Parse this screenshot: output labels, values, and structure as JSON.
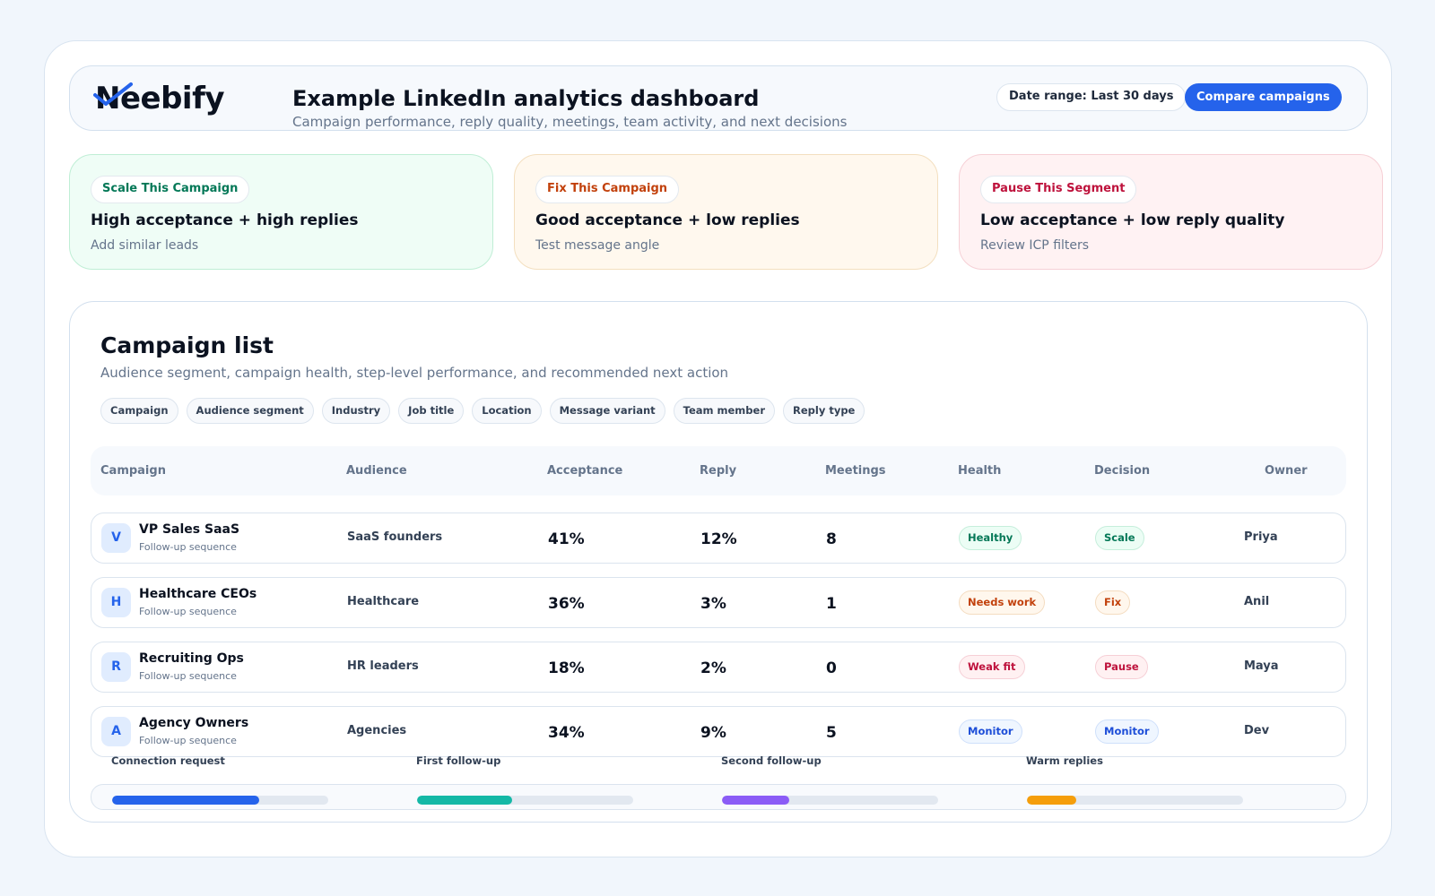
{
  "header": {
    "logo": "Neebify",
    "title": "Example LinkedIn analytics dashboard",
    "subtitle": "Campaign performance, reply quality, meetings, team activity, and next decisions",
    "date_range": "Date range: Last 30 days",
    "compare_label": "Compare campaigns"
  },
  "decisions": [
    {
      "pill": "Scale This Campaign",
      "title": "High acceptance + high replies",
      "desc": "Add similar leads"
    },
    {
      "pill": "Fix This Campaign",
      "title": "Good acceptance + low replies",
      "desc": "Test message angle"
    },
    {
      "pill": "Pause This Segment",
      "title": "Low acceptance + low reply quality",
      "desc": "Review ICP filters"
    }
  ],
  "campaign_list": {
    "title": "Campaign list",
    "subtitle": "Audience segment, campaign health, step-level performance, and recommended next action",
    "filters": [
      "Campaign",
      "Audience segment",
      "Industry",
      "Job title",
      "Location",
      "Message variant",
      "Team member",
      "Reply type"
    ],
    "columns": [
      "Campaign",
      "Audience",
      "Acceptance",
      "Reply",
      "Meetings",
      "Health",
      "Decision",
      "Owner"
    ],
    "rows": [
      {
        "initial": "V",
        "name": "VP Sales SaaS",
        "sub": "Follow-up sequence",
        "audience": "SaaS founders",
        "acceptance": "41%",
        "reply": "12%",
        "meetings": "8",
        "health": "Healthy",
        "decision": "Scale",
        "owner": "Priya"
      },
      {
        "initial": "H",
        "name": "Healthcare CEOs",
        "sub": "Follow-up sequence",
        "audience": "Healthcare",
        "acceptance": "36%",
        "reply": "3%",
        "meetings": "1",
        "health": "Needs work",
        "decision": "Fix",
        "owner": "Anil"
      },
      {
        "initial": "R",
        "name": "Recruiting Ops",
        "sub": "Follow-up sequence",
        "audience": "HR leaders",
        "acceptance": "18%",
        "reply": "2%",
        "meetings": "0",
        "health": "Weak fit",
        "decision": "Pause",
        "owner": "Maya"
      },
      {
        "initial": "A",
        "name": "Agency Owners",
        "sub": "Follow-up sequence",
        "audience": "Agencies",
        "acceptance": "34%",
        "reply": "9%",
        "meetings": "5",
        "health": "Monitor",
        "decision": "Monitor",
        "owner": "Dev"
      }
    ],
    "steps": [
      {
        "label": "Connection request",
        "fraction": 0.68,
        "color": "#2563eb"
      },
      {
        "label": "First follow-up",
        "fraction": 0.44,
        "color": "#14b8a6"
      },
      {
        "label": "Second follow-up",
        "fraction": 0.31,
        "color": "#8b5cf6"
      },
      {
        "label": "Warm replies",
        "fraction": 0.23,
        "color": "#f59e0b"
      }
    ]
  },
  "colors": {
    "accent": "#2563eb",
    "healthy": "#047857",
    "needs_work": "#c2410c",
    "weak": "#be123c",
    "monitor": "#1d4ed8"
  },
  "icons": {
    "logo_mark": "checkmark-icon"
  }
}
